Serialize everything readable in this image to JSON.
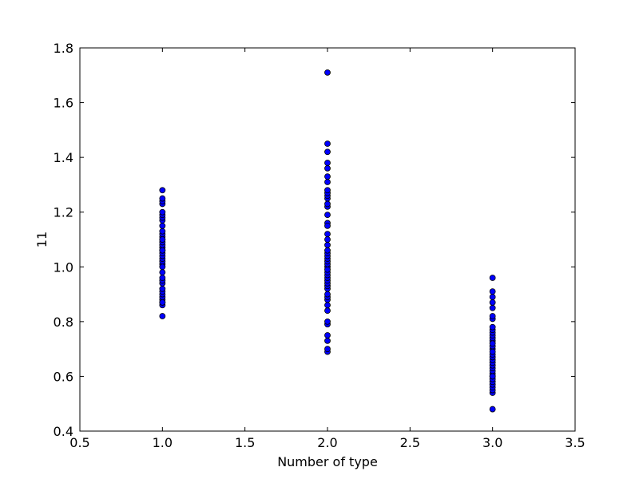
{
  "chart_data": {
    "type": "scatter",
    "title": "",
    "xlabel": "Number of type",
    "ylabel": "11",
    "xlim": [
      0.5,
      3.5
    ],
    "ylim": [
      0.4,
      1.8
    ],
    "xticks": [
      0.5,
      1.0,
      1.5,
      2.0,
      2.5,
      3.0,
      3.5
    ],
    "xtick_labels": [
      "0.5",
      "1.0",
      "1.5",
      "2.0",
      "2.5",
      "3.0",
      "3.5"
    ],
    "yticks": [
      0.4,
      0.6,
      0.8,
      1.0,
      1.2,
      1.4,
      1.6,
      1.8
    ],
    "ytick_labels": [
      "0.4",
      "0.6",
      "0.8",
      "1.0",
      "1.2",
      "1.4",
      "1.6",
      "1.8"
    ],
    "grid": false,
    "legend": "none",
    "marker_color": "#0000ff",
    "marker_edge_color": "#000000",
    "series": [
      {
        "x": [
          1,
          1,
          1,
          1,
          1,
          1,
          1,
          1,
          1,
          1,
          1,
          1,
          1,
          1,
          1,
          1,
          1,
          1,
          1,
          1,
          1,
          1,
          1,
          1,
          1,
          1,
          1,
          1,
          1,
          1,
          1,
          1,
          1,
          1,
          1,
          1,
          1,
          1
        ],
        "y": [
          0.82,
          0.86,
          0.87,
          0.88,
          0.89,
          0.9,
          0.91,
          0.92,
          0.94,
          0.95,
          0.96,
          0.98,
          1.01,
          1.02,
          1.03,
          1.04,
          1.05,
          1.06,
          1.07,
          1.08,
          1.09,
          1.1,
          1.11,
          1.12,
          1.13,
          1.15,
          1.17,
          1.18,
          1.19,
          1.2,
          1.23,
          1.24,
          1.25,
          1.28,
          1.0,
          1.06,
          1.1,
          0.87
        ]
      },
      {
        "x": [
          2,
          2,
          2,
          2,
          2,
          2,
          2,
          2,
          2,
          2,
          2,
          2,
          2,
          2,
          2,
          2,
          2,
          2,
          2,
          2,
          2,
          2,
          2,
          2,
          2,
          2,
          2,
          2,
          2,
          2,
          2,
          2,
          2,
          2,
          2,
          2,
          2,
          2,
          2,
          2,
          2,
          2,
          2,
          2,
          2
        ],
        "y": [
          0.69,
          0.7,
          0.73,
          0.75,
          0.79,
          0.8,
          0.84,
          0.86,
          0.88,
          0.89,
          0.9,
          0.92,
          0.93,
          0.94,
          0.95,
          0.96,
          0.97,
          0.98,
          1.0,
          1.01,
          1.02,
          1.03,
          1.04,
          1.05,
          1.06,
          1.08,
          1.1,
          1.12,
          1.16,
          1.19,
          1.22,
          1.23,
          1.25,
          1.26,
          1.27,
          1.28,
          1.31,
          1.33,
          1.36,
          1.38,
          1.42,
          1.45,
          1.71,
          0.99,
          1.15
        ]
      },
      {
        "x": [
          3,
          3,
          3,
          3,
          3,
          3,
          3,
          3,
          3,
          3,
          3,
          3,
          3,
          3,
          3,
          3,
          3,
          3,
          3,
          3,
          3,
          3,
          3,
          3,
          3,
          3,
          3,
          3,
          3,
          3,
          3,
          3,
          3,
          3
        ],
        "y": [
          0.48,
          0.54,
          0.55,
          0.56,
          0.57,
          0.58,
          0.59,
          0.6,
          0.61,
          0.62,
          0.63,
          0.64,
          0.65,
          0.66,
          0.67,
          0.68,
          0.7,
          0.71,
          0.73,
          0.74,
          0.75,
          0.76,
          0.77,
          0.78,
          0.81,
          0.82,
          0.85,
          0.87,
          0.89,
          0.91,
          0.96,
          0.69,
          0.72,
          0.6
        ]
      }
    ]
  }
}
